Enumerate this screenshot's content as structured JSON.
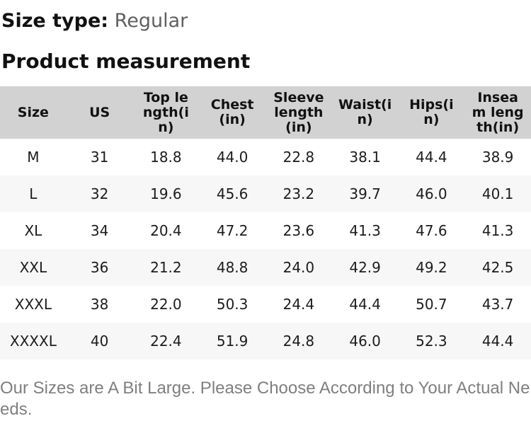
{
  "size_type": {
    "label": "Size type:",
    "value": "Regular"
  },
  "section_title": "Product measurement",
  "table": {
    "headers": [
      "Size",
      "US",
      "Top length(in)",
      "Chest(in)",
      "Sleeve length(in)",
      "Waist(in)",
      "Hips(in)",
      "Inseam length(in)"
    ],
    "rows": [
      [
        "M",
        "31",
        "18.8",
        "44.0",
        "22.8",
        "38.1",
        "44.4",
        "38.9"
      ],
      [
        "L",
        "32",
        "19.6",
        "45.6",
        "23.2",
        "39.7",
        "46.0",
        "40.1"
      ],
      [
        "XL",
        "34",
        "20.4",
        "47.2",
        "23.6",
        "41.3",
        "47.6",
        "41.3"
      ],
      [
        "XXL",
        "36",
        "21.2",
        "48.8",
        "24.0",
        "42.9",
        "49.2",
        "42.5"
      ],
      [
        "XXXL",
        "38",
        "22.0",
        "50.3",
        "24.4",
        "44.4",
        "50.7",
        "43.7"
      ],
      [
        "XXXXL",
        "40",
        "22.4",
        "51.9",
        "24.8",
        "46.0",
        "52.3",
        "44.4"
      ]
    ]
  },
  "footer_note": "Our Sizes are A Bit Large. Please Choose According to Your Actual Needs.",
  "colors": {
    "header_bg": "#d2d2d2",
    "stripe_bg": "#f7f7f7",
    "heading_text": "#111111",
    "body_text": "#1c1c1c",
    "size_type_value_text": "#606060",
    "note_text": "#7f7f7f"
  }
}
